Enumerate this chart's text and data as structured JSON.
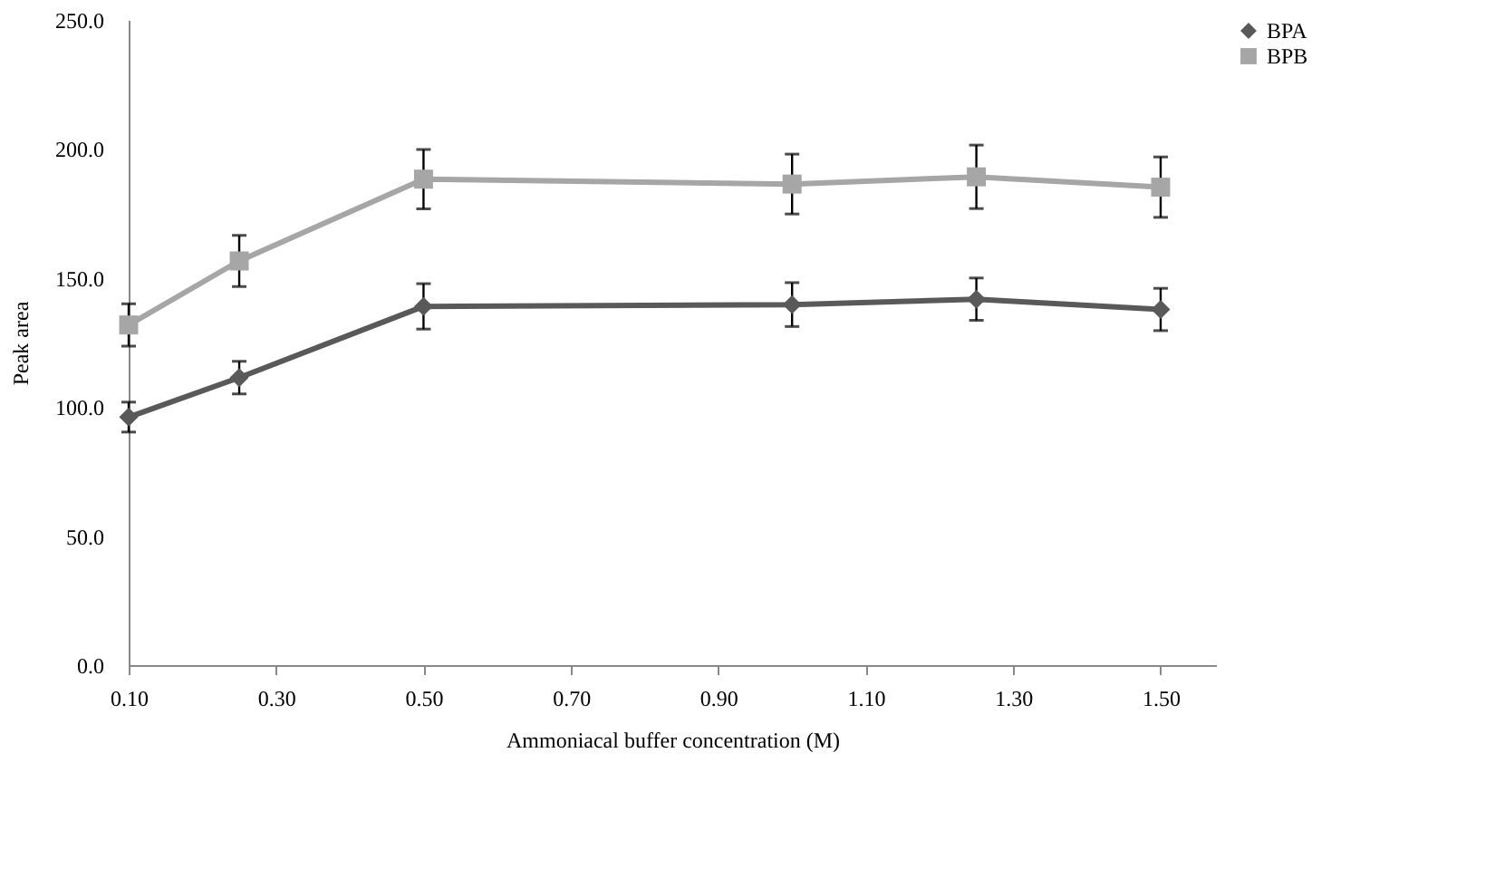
{
  "chart_data": {
    "type": "line",
    "xlabel": "Ammoniacal buffer concentration (M)",
    "ylabel": "Peak area",
    "x": [
      0.1,
      0.25,
      0.5,
      1.0,
      1.25,
      1.5
    ],
    "series": [
      {
        "name": "BPA",
        "color": "#595959",
        "marker": "diamond",
        "values": [
          96.1,
          111.4,
          139.0,
          139.7,
          141.8,
          137.8
        ],
        "errors": [
          5.8,
          6.3,
          8.8,
          8.5,
          8.2,
          8.2
        ]
      },
      {
        "name": "BPB",
        "color": "#a6a6a6",
        "marker": "square",
        "values": [
          131.8,
          156.6,
          188.3,
          186.4,
          189.2,
          185.2
        ],
        "errors": [
          8.2,
          9.9,
          11.5,
          11.6,
          12.3,
          11.7
        ]
      }
    ],
    "xlim": [
      0.1,
      1.575
    ],
    "xticks": [
      {
        "value": 0.1,
        "label": "0.10"
      },
      {
        "value": 0.3,
        "label": "0.30"
      },
      {
        "value": 0.5,
        "label": "0.50"
      },
      {
        "value": 0.7,
        "label": "0.70"
      },
      {
        "value": 0.9,
        "label": "0.90"
      },
      {
        "value": 1.1,
        "label": "1.10"
      },
      {
        "value": 1.3,
        "label": "1.30"
      },
      {
        "value": 1.5,
        "label": "1.50"
      }
    ],
    "ylim": [
      0,
      250
    ],
    "yticks": [
      {
        "value": 0,
        "label": "0.0"
      },
      {
        "value": 50,
        "label": "50.0"
      },
      {
        "value": 100,
        "label": "100.0"
      },
      {
        "value": 150,
        "label": "150.0"
      },
      {
        "value": 200,
        "label": "200.0"
      },
      {
        "value": 250,
        "label": "250.0"
      }
    ],
    "grid": false,
    "legend": "top right",
    "line_style": "solid"
  }
}
